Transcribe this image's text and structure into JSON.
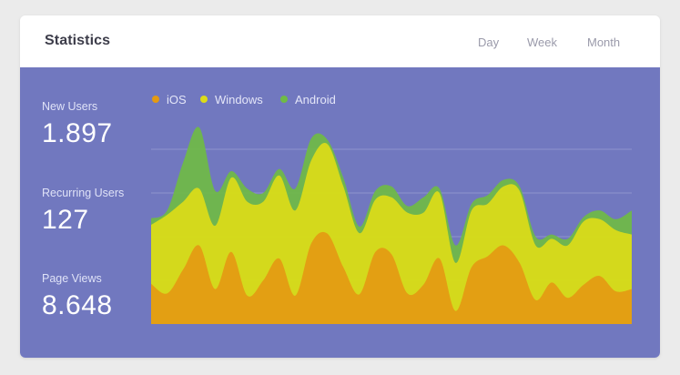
{
  "header": {
    "title": "Statistics",
    "tabs": [
      "Day",
      "Week",
      "Month"
    ]
  },
  "stats": [
    {
      "label": "New Users",
      "value": "1.897"
    },
    {
      "label": "Recurring Users",
      "value": "127"
    },
    {
      "label": "Page Views",
      "value": "8.648"
    }
  ],
  "colors": {
    "page_bg": "#ebebeb",
    "card_bg": "#ffffff",
    "panel_bg": "#7178bf",
    "ios": "#e49a12",
    "windows": "#dcdc18",
    "android": "#6fbb45"
  },
  "chart_data": {
    "type": "area",
    "x": [
      0,
      1,
      2,
      3,
      4,
      5,
      6,
      7,
      8,
      9,
      10,
      11,
      12,
      13,
      14,
      15,
      16,
      17,
      18,
      19,
      20,
      21,
      22,
      23,
      24,
      25,
      26,
      27,
      28,
      29,
      30
    ],
    "ylim": [
      0,
      4
    ],
    "grid": true,
    "legend_position": "top-left",
    "series": [
      {
        "name": "iOS",
        "color": "#e49a12",
        "values": [
          0.92,
          0.7,
          1.25,
          1.8,
          0.8,
          1.65,
          0.65,
          1.0,
          1.5,
          0.65,
          1.85,
          2.07,
          1.3,
          0.68,
          1.65,
          1.6,
          0.7,
          0.9,
          1.5,
          0.3,
          1.3,
          1.55,
          1.8,
          1.4,
          0.55,
          0.95,
          0.6,
          0.9,
          1.1,
          0.75,
          0.8
        ]
      },
      {
        "name": "Windows",
        "color": "#dcdc18",
        "values": [
          1.35,
          1.8,
          1.55,
          1.3,
          1.45,
          1.7,
          2.15,
          1.8,
          1.9,
          1.95,
          1.9,
          2.05,
          1.85,
          1.4,
          1.2,
          1.3,
          1.85,
          1.65,
          1.5,
          1.1,
          1.3,
          1.2,
          1.35,
          1.65,
          1.25,
          1.0,
          1.2,
          1.45,
          1.3,
          1.4,
          1.25
        ]
      },
      {
        "name": "Android",
        "color": "#6fbb45",
        "values": [
          0.15,
          0.1,
          0.9,
          1.4,
          0.8,
          0.15,
          0.3,
          0.2,
          0.15,
          0.5,
          0.5,
          0.1,
          0.2,
          0.15,
          0.2,
          0.25,
          0.15,
          0.35,
          0.1,
          0.4,
          0.15,
          0.2,
          0.15,
          0.1,
          0.2,
          0.1,
          0.15,
          0.1,
          0.2,
          0.25,
          0.55
        ]
      }
    ]
  }
}
